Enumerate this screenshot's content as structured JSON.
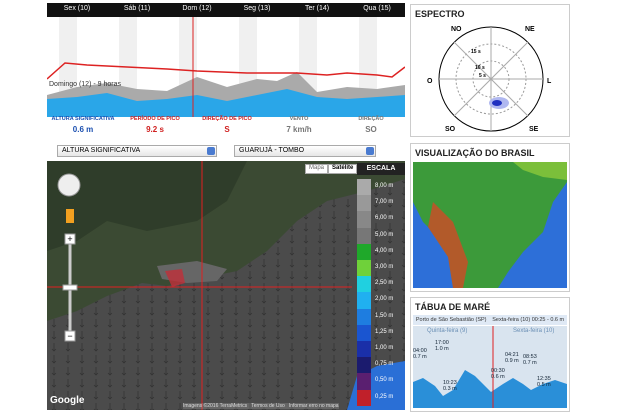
{
  "forecast": {
    "days": [
      "Sex (10)",
      "Sáb (11)",
      "Dom (12)",
      "Seg (13)",
      "Ter (14)",
      "Qua (15)"
    ],
    "cursor_label": "Domingo (12) - 9 horas",
    "stats": [
      {
        "label": "ALTURA SIGNIFICATIVA",
        "value": "0.6 m"
      },
      {
        "label": "PERÍODO DE PICO",
        "value": "9.2 s"
      },
      {
        "label": "DIREÇÃO DE PICO",
        "value": "S"
      },
      {
        "label": "VENTO",
        "value": "7 km/h"
      },
      {
        "label": "DIREÇÃO",
        "value": "SO"
      }
    ]
  },
  "selectors": {
    "variable": "ALTURA SIGNIFICATIVA",
    "location": "GUARUJÁ - TOMBO"
  },
  "map": {
    "buttons": [
      "Mapa",
      "Satélite"
    ],
    "scale_title": "ESCALA",
    "scale": [
      "8,00 m",
      "7,00 m",
      "6,00 m",
      "5,00 m",
      "4,00 m",
      "3,00 m",
      "2,50 m",
      "2,00 m",
      "1,50 m",
      "1,25 m",
      "1,00 m",
      "0,75 m",
      "0,50 m",
      "0,25 m"
    ],
    "logo": "Google",
    "footer": [
      "Imagens ©2016 TerraMetrics",
      "Termos de Uso",
      "Informar erro no mapa"
    ]
  },
  "spectrum": {
    "title": "ESPECTRO",
    "directions": [
      "NO",
      "NE",
      "O",
      "L",
      "SO",
      "SE"
    ],
    "rings": [
      "15 s",
      "10 s",
      "5 s"
    ]
  },
  "brazil": {
    "title": "VISUALIZAÇÃO DO BRASIL"
  },
  "tide": {
    "title": "TÁBUA DE MARÉ",
    "port": "Porto de São Sebastião (SP)",
    "current": "Sexta-feira (10) 00:25 - 0.6 m",
    "days": [
      "Quinta-feira (9)",
      "Sexta-feira (10)"
    ],
    "labels": [
      {
        "time": "04:00",
        "height": "0.7 m"
      },
      {
        "time": "17:00",
        "height": "1.0 m"
      },
      {
        "time": "10:23",
        "height": "0.3 m"
      },
      {
        "time": "04:21",
        "height": "0.9 m"
      },
      {
        "time": "00:30",
        "height": "0.6 m"
      },
      {
        "time": "08:53",
        "height": "0.7 m"
      },
      {
        "time": "12:35",
        "height": "0.5 m"
      }
    ]
  }
}
